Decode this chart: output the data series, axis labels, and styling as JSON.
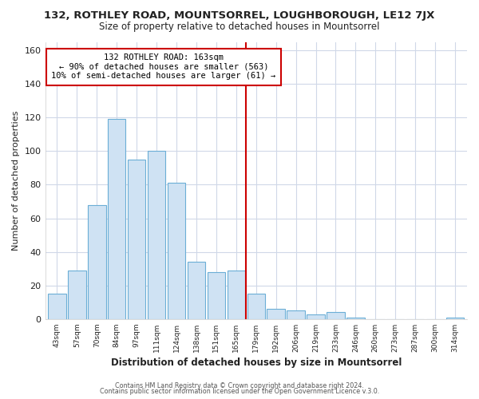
{
  "title": "132, ROTHLEY ROAD, MOUNTSORREL, LOUGHBOROUGH, LE12 7JX",
  "subtitle": "Size of property relative to detached houses in Mountsorrel",
  "xlabel": "Distribution of detached houses by size in Mountsorrel",
  "ylabel": "Number of detached properties",
  "bar_color": "#cfe2f3",
  "bar_edge_color": "#6baed6",
  "bin_labels": [
    "43sqm",
    "57sqm",
    "70sqm",
    "84sqm",
    "97sqm",
    "111sqm",
    "124sqm",
    "138sqm",
    "151sqm",
    "165sqm",
    "179sqm",
    "192sqm",
    "206sqm",
    "219sqm",
    "233sqm",
    "246sqm",
    "260sqm",
    "273sqm",
    "287sqm",
    "300sqm",
    "314sqm"
  ],
  "bar_heights": [
    15,
    29,
    68,
    119,
    95,
    100,
    81,
    34,
    28,
    29,
    15,
    6,
    5,
    3,
    4,
    1,
    0,
    0,
    0,
    0,
    1
  ],
  "ylim": [
    0,
    165
  ],
  "yticks": [
    0,
    20,
    40,
    60,
    80,
    100,
    120,
    140,
    160
  ],
  "vline_x": 9.5,
  "vline_color": "#cc0000",
  "annotation_title": "132 ROTHLEY ROAD: 163sqm",
  "annotation_line1": "← 90% of detached houses are smaller (563)",
  "annotation_line2": "10% of semi-detached houses are larger (61) →",
  "annotation_box_color": "#ffffff",
  "annotation_box_edge": "#cc0000",
  "footer1": "Contains HM Land Registry data © Crown copyright and database right 2024.",
  "footer2": "Contains public sector information licensed under the Open Government Licence v.3.0.",
  "background_color": "#ffffff",
  "plot_background": "#ffffff",
  "grid_color": "#d0d8e8"
}
